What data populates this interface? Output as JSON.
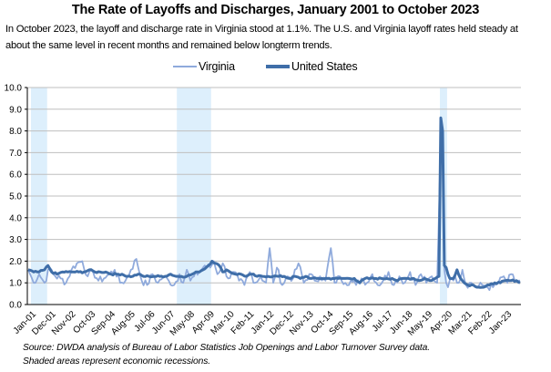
{
  "title": "The Rate of Layoffs and Discharges, January 2001 to October 2023",
  "subtitle": "In October 2023, the layoff and discharge rate in Virginia stood at 1.1%. The U.S. and Virginia layoff rates held steady at about the same level in recent months and remained below longterm trends.",
  "source_lines": [
    "Source: DWDA analysis of Bureau of Labor Statistics Job Openings and Labor Turnover Survey data.",
    "Shaded areas represent economic recessions."
  ],
  "colors": {
    "virginia": "#8FAADC",
    "united_states": "#3F6EA8",
    "recession": "#DDEFFC",
    "grid": "#BFBFBF",
    "axis": "#000000"
  },
  "chart_data": {
    "type": "line",
    "title": "The Rate of Layoffs and Discharges, January 2001 to October 2023",
    "xlabel": "",
    "ylabel": "",
    "ylim": [
      0,
      10
    ],
    "yticks": [
      "0.0",
      "1.0",
      "2.0",
      "3.0",
      "4.0",
      "5.0",
      "6.0",
      "7.0",
      "8.0",
      "9.0",
      "10.0"
    ],
    "grid": true,
    "legend_position": "top-center",
    "x_start": "Jan-01",
    "x_end": "Oct-23",
    "n_months": 274,
    "xtick_labels": [
      "Jan-01",
      "Dec-01",
      "Nov-02",
      "Oct-03",
      "Sep-04",
      "Aug-05",
      "Jul-06",
      "Jun-07",
      "May-08",
      "Apr-09",
      "Mar-10",
      "Feb-11",
      "Jan-12",
      "Dec-12",
      "Nov-13",
      "Oct-14",
      "Sep-15",
      "Aug-16",
      "Jul-17",
      "Jun-18",
      "May-19",
      "Apr-20",
      "Mar-21",
      "Feb-22",
      "Jan-23"
    ],
    "xtick_interval_months": 11,
    "recessions": [
      {
        "label": "2001 recession",
        "start_month_index": 2,
        "end_month_index": 10
      },
      {
        "label": "Great Recession",
        "start_month_index": 83,
        "end_month_index": 101
      },
      {
        "label": "COVID-19 recession",
        "start_month_index": 229,
        "end_month_index": 232
      }
    ],
    "series": [
      {
        "name": "Virginia",
        "key": "virginia",
        "approx_keypoints": [
          [
            0,
            1.6
          ],
          [
            3,
            1.0
          ],
          [
            6,
            1.4
          ],
          [
            9,
            1.0
          ],
          [
            12,
            1.7
          ],
          [
            15,
            1.3
          ],
          [
            18,
            1.2
          ],
          [
            21,
            1.0
          ],
          [
            24,
            1.6
          ],
          [
            27,
            1.9
          ],
          [
            30,
            2.0
          ],
          [
            33,
            1.3
          ],
          [
            36,
            1.5
          ],
          [
            39,
            1.1
          ],
          [
            42,
            1.2
          ],
          [
            45,
            1.4
          ],
          [
            48,
            1.6
          ],
          [
            51,
            1.0
          ],
          [
            54,
            1.1
          ],
          [
            57,
            1.6
          ],
          [
            60,
            2.1
          ],
          [
            63,
            1.1
          ],
          [
            66,
            0.9
          ],
          [
            69,
            1.4
          ],
          [
            72,
            1.0
          ],
          [
            75,
            1.3
          ],
          [
            78,
            1.1
          ],
          [
            81,
            0.9
          ],
          [
            84,
            1.4
          ],
          [
            86,
            1.0
          ],
          [
            88,
            1.6
          ],
          [
            90,
            1.1
          ],
          [
            92,
            1.3
          ],
          [
            95,
            1.5
          ],
          [
            98,
            1.8
          ],
          [
            101,
            1.7
          ],
          [
            103,
            2.0
          ],
          [
            105,
            1.4
          ],
          [
            108,
            1.9
          ],
          [
            111,
            1.2
          ],
          [
            114,
            1.5
          ],
          [
            117,
            1.1
          ],
          [
            120,
            0.9
          ],
          [
            123,
            1.5
          ],
          [
            126,
            1.0
          ],
          [
            129,
            1.3
          ],
          [
            132,
            1.0
          ],
          [
            134,
            2.6
          ],
          [
            136,
            1.0
          ],
          [
            138,
            1.7
          ],
          [
            141,
            0.9
          ],
          [
            144,
            1.3
          ],
          [
            147,
            1.2
          ],
          [
            150,
            1.9
          ],
          [
            153,
            1.0
          ],
          [
            156,
            1.4
          ],
          [
            159,
            1.1
          ],
          [
            162,
            1.3
          ],
          [
            165,
            1.1
          ],
          [
            168,
            2.6
          ],
          [
            170,
            1.0
          ],
          [
            173,
            1.3
          ],
          [
            176,
            1.0
          ],
          [
            179,
            1.1
          ],
          [
            182,
            0.9
          ],
          [
            185,
            1.2
          ],
          [
            188,
            1.0
          ],
          [
            191,
            1.4
          ],
          [
            194,
            0.9
          ],
          [
            197,
            1.1
          ],
          [
            200,
            1.5
          ],
          [
            203,
            0.9
          ],
          [
            206,
            1.3
          ],
          [
            209,
            1.0
          ],
          [
            212,
            1.5
          ],
          [
            215,
            0.9
          ],
          [
            218,
            1.4
          ],
          [
            221,
            1.0
          ],
          [
            224,
            1.3
          ],
          [
            227,
            1.0
          ],
          [
            229,
            7.6
          ],
          [
            230,
            8.0
          ],
          [
            231,
            1.6
          ],
          [
            232,
            1.0
          ],
          [
            233,
            0.8
          ],
          [
            235,
            1.2
          ],
          [
            237,
            1.3
          ],
          [
            239,
            1.0
          ],
          [
            241,
            1.6
          ],
          [
            243,
            0.9
          ],
          [
            246,
            1.0
          ],
          [
            249,
            0.8
          ],
          [
            252,
            0.9
          ],
          [
            255,
            0.8
          ],
          [
            258,
            0.8
          ],
          [
            261,
            1.0
          ],
          [
            264,
            1.3
          ],
          [
            266,
            1.0
          ],
          [
            268,
            1.4
          ],
          [
            270,
            1.1
          ],
          [
            273,
            1.1
          ]
        ]
      },
      {
        "name": "United States",
        "key": "united_states",
        "approx_keypoints": [
          [
            0,
            1.6
          ],
          [
            3,
            1.5
          ],
          [
            6,
            1.5
          ],
          [
            9,
            1.6
          ],
          [
            11,
            1.8
          ],
          [
            13,
            1.5
          ],
          [
            16,
            1.4
          ],
          [
            19,
            1.5
          ],
          [
            22,
            1.5
          ],
          [
            25,
            1.5
          ],
          [
            28,
            1.5
          ],
          [
            31,
            1.5
          ],
          [
            34,
            1.6
          ],
          [
            37,
            1.5
          ],
          [
            40,
            1.5
          ],
          [
            43,
            1.5
          ],
          [
            46,
            1.4
          ],
          [
            49,
            1.4
          ],
          [
            52,
            1.4
          ],
          [
            55,
            1.3
          ],
          [
            58,
            1.3
          ],
          [
            61,
            1.4
          ],
          [
            64,
            1.3
          ],
          [
            67,
            1.3
          ],
          [
            70,
            1.3
          ],
          [
            73,
            1.3
          ],
          [
            76,
            1.3
          ],
          [
            79,
            1.4
          ],
          [
            82,
            1.3
          ],
          [
            85,
            1.3
          ],
          [
            88,
            1.3
          ],
          [
            91,
            1.4
          ],
          [
            94,
            1.5
          ],
          [
            97,
            1.6
          ],
          [
            100,
            1.8
          ],
          [
            102,
            2.0
          ],
          [
            104,
            1.9
          ],
          [
            106,
            1.8
          ],
          [
            108,
            1.5
          ],
          [
            110,
            1.6
          ],
          [
            112,
            1.5
          ],
          [
            115,
            1.4
          ],
          [
            118,
            1.4
          ],
          [
            121,
            1.3
          ],
          [
            124,
            1.4
          ],
          [
            127,
            1.3
          ],
          [
            130,
            1.3
          ],
          [
            133,
            1.3
          ],
          [
            136,
            1.3
          ],
          [
            139,
            1.3
          ],
          [
            142,
            1.3
          ],
          [
            145,
            1.2
          ],
          [
            148,
            1.3
          ],
          [
            151,
            1.2
          ],
          [
            154,
            1.3
          ],
          [
            157,
            1.2
          ],
          [
            160,
            1.2
          ],
          [
            163,
            1.2
          ],
          [
            166,
            1.2
          ],
          [
            169,
            1.2
          ],
          [
            172,
            1.2
          ],
          [
            175,
            1.2
          ],
          [
            178,
            1.2
          ],
          [
            181,
            1.2
          ],
          [
            184,
            1.0
          ],
          [
            187,
            1.2
          ],
          [
            190,
            1.2
          ],
          [
            193,
            1.2
          ],
          [
            196,
            1.2
          ],
          [
            199,
            1.2
          ],
          [
            202,
            1.2
          ],
          [
            205,
            1.1
          ],
          [
            208,
            1.2
          ],
          [
            211,
            1.2
          ],
          [
            214,
            1.2
          ],
          [
            217,
            1.1
          ],
          [
            220,
            1.2
          ],
          [
            223,
            1.1
          ],
          [
            226,
            1.2
          ],
          [
            228,
            1.3
          ],
          [
            229,
            8.6
          ],
          [
            230,
            8.0
          ],
          [
            231,
            1.8
          ],
          [
            232,
            1.7
          ],
          [
            233,
            1.4
          ],
          [
            234,
            1.2
          ],
          [
            236,
            1.2
          ],
          [
            238,
            1.6
          ],
          [
            240,
            1.2
          ],
          [
            242,
            1.0
          ],
          [
            244,
            0.9
          ],
          [
            247,
            0.9
          ],
          [
            250,
            0.8
          ],
          [
            253,
            0.8
          ],
          [
            256,
            0.9
          ],
          [
            259,
            1.0
          ],
          [
            262,
            1.0
          ],
          [
            265,
            1.1
          ],
          [
            268,
            1.1
          ],
          [
            271,
            1.1
          ],
          [
            273,
            1.0
          ]
        ]
      }
    ]
  }
}
